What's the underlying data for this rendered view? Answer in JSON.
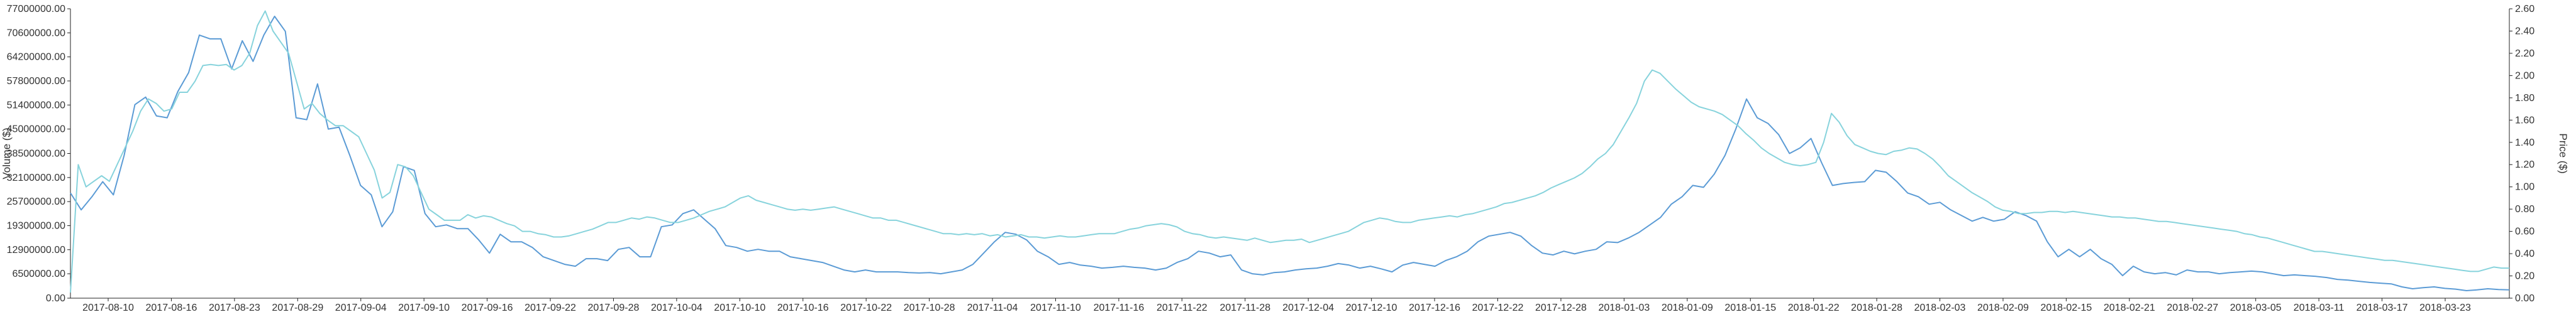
{
  "chart_data": {
    "type": "line",
    "title": "",
    "xlabel": "",
    "ylabel_left": "Volume ($)",
    "ylabel_right": "Price ($)",
    "grid": false,
    "legend": "none",
    "colors": {
      "volume": "#5b9bd5",
      "price": "#87d3dc",
      "axis": "#222222",
      "text": "#333333"
    },
    "x_tick_labels": [
      "2017-08-10",
      "2017-08-16",
      "2017-08-23",
      "2017-08-29",
      "2017-09-04",
      "2017-09-10",
      "2017-09-16",
      "2017-09-22",
      "2017-09-28",
      "2017-10-04",
      "2017-10-10",
      "2017-10-16",
      "2017-10-22",
      "2017-10-28",
      "2017-11-04",
      "2017-11-10",
      "2017-11-16",
      "2017-11-22",
      "2017-11-28",
      "2017-12-04",
      "2017-12-10",
      "2017-12-16",
      "2017-12-22",
      "2017-12-28",
      "2018-01-03",
      "2018-01-09",
      "2018-01-15",
      "2018-01-22",
      "2018-01-28",
      "2018-02-03",
      "2018-02-09",
      "2018-02-15",
      "2018-02-21",
      "2018-02-27",
      "2018-03-05",
      "2018-03-11",
      "2018-03-17",
      "2018-03-23"
    ],
    "y_left_ticks": [
      "0.00",
      "6500000.00",
      "12900000.00",
      "19300000.00",
      "25700000.00",
      "32100000.00",
      "38500000.00",
      "45000000.00",
      "51400000.00",
      "57800000.00",
      "64200000.00",
      "70600000.00",
      "77000000.00"
    ],
    "y_right_ticks": [
      "0.00",
      "0.20",
      "0.40",
      "0.60",
      "0.80",
      "1.00",
      "1.20",
      "1.40",
      "1.60",
      "1.80",
      "2.00",
      "2.20",
      "2.40",
      "2.60"
    ],
    "ylim_left": [
      0,
      77000000
    ],
    "ylim_right": [
      0,
      2.6
    ],
    "series": [
      {
        "key": "volume",
        "axis": "left",
        "values": [
          28000000,
          23500000,
          27000000,
          31000000,
          27500000,
          38000000,
          51500000,
          53500000,
          48500000,
          48000000,
          55000000,
          60000000,
          70000000,
          69000000,
          69000000,
          61000000,
          68500000,
          63000000,
          70000000,
          75000000,
          71000000,
          48000000,
          47500000,
          57000000,
          45000000,
          45500000,
          38000000,
          30000000,
          27500000,
          19000000,
          23000000,
          35000000,
          34000000,
          22500000,
          19000000,
          19500000,
          18500000,
          18500000,
          15500000,
          12000000,
          17000000,
          15000000,
          15000000,
          13500000,
          11000000,
          10000000,
          9000000,
          8500000,
          10500000,
          10500000,
          10000000,
          13000000,
          13500000,
          11000000,
          11000000,
          19000000,
          19500000,
          22500000,
          23500000,
          21000000,
          18500000,
          14000000,
          13500000,
          12500000,
          13000000,
          12500000,
          12500000,
          11000000,
          10500000,
          10000000,
          9500000,
          8500000,
          7500000,
          7000000,
          7500000,
          7000000,
          7000000,
          7000000,
          6800000,
          6700000,
          6800000,
          6500000,
          7000000,
          7500000,
          9000000,
          12000000,
          15000000,
          17500000,
          17000000,
          15500000,
          12500000,
          11000000,
          9000000,
          9500000,
          8800000,
          8500000,
          8000000,
          8200000,
          8500000,
          8200000,
          8000000,
          7500000,
          8000000,
          9500000,
          10500000,
          12500000,
          12000000,
          11000000,
          11500000,
          7500000,
          6500000,
          6200000,
          6800000,
          7000000,
          7500000,
          7800000,
          8000000,
          8500000,
          9200000,
          8800000,
          8000000,
          8500000,
          7800000,
          7000000,
          8800000,
          9500000,
          9000000,
          8500000,
          10000000,
          11000000,
          12500000,
          15000000,
          16500000,
          17000000,
          17500000,
          16500000,
          14000000,
          12000000,
          11500000,
          12500000,
          11800000,
          12500000,
          13000000,
          15000000,
          14800000,
          16000000,
          17500000,
          19500000,
          21500000,
          25000000,
          27000000,
          30000000,
          29500000,
          33000000,
          38000000,
          45000000,
          53000000,
          48000000,
          46500000,
          43500000,
          38500000,
          40000000,
          42500000,
          36000000,
          30000000,
          30500000,
          30800000,
          31000000,
          34000000,
          33500000,
          31000000,
          28000000,
          27000000,
          25000000,
          25500000,
          23500000,
          22000000,
          20500000,
          21500000,
          20500000,
          21000000,
          23000000,
          22000000,
          20500000,
          15000000,
          11000000,
          13000000,
          11000000,
          13000000,
          10500000,
          9000000,
          6000000,
          8500000,
          7000000,
          6500000,
          6800000,
          6200000,
          7500000,
          7000000,
          7000000,
          6500000,
          6800000,
          7000000,
          7200000,
          7000000,
          6500000,
          6000000,
          6200000,
          6000000,
          5800000,
          5500000,
          5000000,
          4800000,
          4500000,
          4200000,
          4000000,
          3800000,
          3000000,
          2500000,
          2800000,
          3000000,
          2600000,
          2400000,
          2000000,
          2200000,
          2500000,
          2300000,
          2200000
        ]
      },
      {
        "key": "price",
        "axis": "right",
        "values": [
          0.05,
          1.2,
          1.0,
          1.05,
          1.1,
          1.05,
          1.2,
          1.35,
          1.5,
          1.68,
          1.79,
          1.75,
          1.68,
          1.7,
          1.85,
          1.85,
          1.95,
          2.09,
          2.1,
          2.09,
          2.1,
          2.05,
          2.09,
          2.2,
          2.45,
          2.58,
          2.4,
          2.3,
          2.2,
          1.95,
          1.7,
          1.75,
          1.66,
          1.6,
          1.55,
          1.55,
          1.5,
          1.45,
          1.3,
          1.15,
          0.9,
          0.95,
          1.2,
          1.18,
          1.1,
          0.95,
          0.8,
          0.75,
          0.7,
          0.7,
          0.7,
          0.75,
          0.72,
          0.74,
          0.73,
          0.7,
          0.67,
          0.65,
          0.6,
          0.6,
          0.58,
          0.57,
          0.55,
          0.55,
          0.56,
          0.58,
          0.6,
          0.62,
          0.65,
          0.68,
          0.68,
          0.7,
          0.72,
          0.71,
          0.73,
          0.72,
          0.7,
          0.68,
          0.68,
          0.7,
          0.72,
          0.75,
          0.78,
          0.8,
          0.82,
          0.86,
          0.9,
          0.92,
          0.88,
          0.86,
          0.84,
          0.82,
          0.8,
          0.79,
          0.8,
          0.79,
          0.8,
          0.81,
          0.82,
          0.8,
          0.78,
          0.76,
          0.74,
          0.72,
          0.72,
          0.7,
          0.7,
          0.68,
          0.66,
          0.64,
          0.62,
          0.6,
          0.58,
          0.58,
          0.57,
          0.58,
          0.57,
          0.58,
          0.56,
          0.57,
          0.55,
          0.56,
          0.57,
          0.55,
          0.55,
          0.54,
          0.55,
          0.56,
          0.55,
          0.55,
          0.56,
          0.57,
          0.58,
          0.58,
          0.58,
          0.6,
          0.62,
          0.63,
          0.65,
          0.66,
          0.67,
          0.66,
          0.64,
          0.6,
          0.58,
          0.57,
          0.55,
          0.54,
          0.55,
          0.54,
          0.53,
          0.52,
          0.54,
          0.52,
          0.5,
          0.51,
          0.52,
          0.52,
          0.53,
          0.5,
          0.52,
          0.54,
          0.56,
          0.58,
          0.6,
          0.64,
          0.68,
          0.7,
          0.72,
          0.71,
          0.69,
          0.68,
          0.68,
          0.7,
          0.71,
          0.72,
          0.73,
          0.74,
          0.73,
          0.75,
          0.76,
          0.78,
          0.8,
          0.82,
          0.85,
          0.86,
          0.88,
          0.9,
          0.92,
          0.95,
          0.99,
          1.02,
          1.05,
          1.08,
          1.12,
          1.18,
          1.25,
          1.3,
          1.38,
          1.5,
          1.62,
          1.75,
          1.95,
          2.05,
          2.02,
          1.95,
          1.88,
          1.82,
          1.76,
          1.72,
          1.7,
          1.68,
          1.65,
          1.6,
          1.55,
          1.48,
          1.42,
          1.35,
          1.3,
          1.26,
          1.22,
          1.2,
          1.19,
          1.2,
          1.22,
          1.4,
          1.66,
          1.58,
          1.46,
          1.38,
          1.35,
          1.32,
          1.3,
          1.29,
          1.32,
          1.33,
          1.35,
          1.34,
          1.3,
          1.25,
          1.18,
          1.1,
          1.05,
          1.0,
          0.95,
          0.91,
          0.87,
          0.82,
          0.79,
          0.78,
          0.76,
          0.76,
          0.77,
          0.77,
          0.78,
          0.78,
          0.77,
          0.78,
          0.77,
          0.76,
          0.75,
          0.74,
          0.73,
          0.73,
          0.72,
          0.72,
          0.71,
          0.7,
          0.69,
          0.69,
          0.68,
          0.67,
          0.66,
          0.65,
          0.64,
          0.63,
          0.62,
          0.61,
          0.6,
          0.58,
          0.57,
          0.55,
          0.54,
          0.52,
          0.5,
          0.48,
          0.46,
          0.44,
          0.42,
          0.42,
          0.41,
          0.4,
          0.39,
          0.38,
          0.37,
          0.36,
          0.35,
          0.34,
          0.34,
          0.33,
          0.32,
          0.31,
          0.3,
          0.29,
          0.28,
          0.27,
          0.26,
          0.25,
          0.24,
          0.24,
          0.26,
          0.28,
          0.27,
          0.27
        ]
      }
    ]
  }
}
